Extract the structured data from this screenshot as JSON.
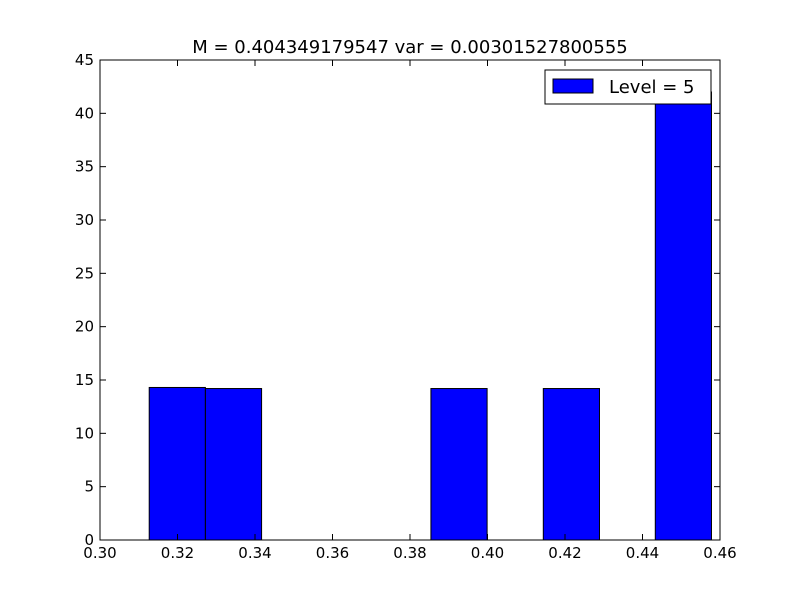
{
  "chart_data": {
    "type": "bar",
    "title": "M = 0.404349179547 var = 0.00301527800555",
    "xlabel": "",
    "ylabel": "",
    "xlim": [
      0.3,
      0.46
    ],
    "ylim": [
      0,
      45
    ],
    "xticks": [
      "0.30",
      "0.32",
      "0.34",
      "0.36",
      "0.38",
      "0.40",
      "0.42",
      "0.44",
      "0.46"
    ],
    "yticks": [
      "0",
      "5",
      "10",
      "15",
      "20",
      "25",
      "30",
      "35",
      "40",
      "45"
    ],
    "grid": false,
    "legend_position": "top-right",
    "series": [
      {
        "name": "Level = 5",
        "color": "#0000ff",
        "bins": [
          {
            "x0": 0.3127,
            "x1": 0.3272,
            "value": 14.3
          },
          {
            "x0": 0.3272,
            "x1": 0.3417,
            "value": 14.2
          },
          {
            "x0": 0.3854,
            "x1": 0.3999,
            "value": 14.2
          },
          {
            "x0": 0.4144,
            "x1": 0.4289,
            "value": 14.2
          },
          {
            "x0": 0.4433,
            "x1": 0.4578,
            "value": 42.0
          }
        ]
      }
    ]
  }
}
